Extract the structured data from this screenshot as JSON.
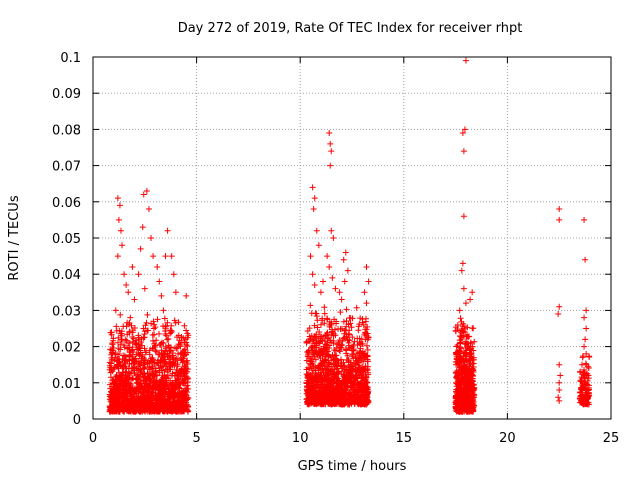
{
  "chart_data": {
    "type": "scatter",
    "title": "Day 272 of 2019, Rate Of TEC Index for receiver rhpt",
    "xlabel": "GPS time / hours",
    "ylabel": "ROTI / TECUs",
    "xlim": [
      0,
      25
    ],
    "ylim": [
      0,
      0.1
    ],
    "xticks": [
      "0",
      "5",
      "10",
      "15",
      "20",
      "25"
    ],
    "yticks": [
      "0",
      "0.01",
      "0.02",
      "0.03",
      "0.04",
      "0.05",
      "0.06",
      "0.07",
      "0.08",
      "0.09",
      "0.1"
    ],
    "grid": true,
    "marker": "plus",
    "color": "#ff0000",
    "series": [
      {
        "name": "ROTI",
        "points": [
          [
            1.2,
            0.061
          ],
          [
            1.3,
            0.059
          ],
          [
            1.25,
            0.055
          ],
          [
            1.35,
            0.052
          ],
          [
            1.4,
            0.048
          ],
          [
            1.2,
            0.045
          ],
          [
            1.5,
            0.04
          ],
          [
            1.6,
            0.037
          ],
          [
            1.7,
            0.035
          ],
          [
            1.1,
            0.03
          ],
          [
            1.8,
            0.028
          ],
          [
            2.0,
            0.033
          ],
          [
            2.2,
            0.04
          ],
          [
            2.3,
            0.047
          ],
          [
            2.4,
            0.053
          ],
          [
            2.45,
            0.062
          ],
          [
            2.6,
            0.063
          ],
          [
            2.7,
            0.058
          ],
          [
            2.8,
            0.05
          ],
          [
            2.9,
            0.045
          ],
          [
            3.1,
            0.042
          ],
          [
            3.2,
            0.038
          ],
          [
            3.3,
            0.034
          ],
          [
            3.5,
            0.045
          ],
          [
            3.6,
            0.052
          ],
          [
            3.8,
            0.045
          ],
          [
            3.9,
            0.04
          ],
          [
            4.0,
            0.035
          ],
          [
            4.5,
            0.034
          ],
          [
            3.4,
            0.03
          ],
          [
            2.5,
            0.036
          ],
          [
            1.9,
            0.042
          ],
          [
            10.6,
            0.064
          ],
          [
            10.7,
            0.061
          ],
          [
            10.65,
            0.058
          ],
          [
            10.8,
            0.052
          ],
          [
            10.9,
            0.048
          ],
          [
            10.5,
            0.045
          ],
          [
            10.6,
            0.04
          ],
          [
            10.7,
            0.037
          ],
          [
            11.0,
            0.035
          ],
          [
            11.1,
            0.038
          ],
          [
            11.4,
            0.079
          ],
          [
            11.45,
            0.076
          ],
          [
            11.5,
            0.074
          ],
          [
            11.45,
            0.07
          ],
          [
            11.5,
            0.052
          ],
          [
            11.6,
            0.05
          ],
          [
            11.3,
            0.045
          ],
          [
            11.4,
            0.042
          ],
          [
            11.55,
            0.039
          ],
          [
            11.7,
            0.036
          ],
          [
            11.9,
            0.035
          ],
          [
            12.0,
            0.033
          ],
          [
            12.1,
            0.044
          ],
          [
            12.2,
            0.046
          ],
          [
            12.3,
            0.041
          ],
          [
            12.15,
            0.038
          ],
          [
            13.2,
            0.042
          ],
          [
            13.3,
            0.038
          ],
          [
            13.1,
            0.035
          ],
          [
            13.2,
            0.032
          ],
          [
            17.8,
            0.041
          ],
          [
            17.85,
            0.043
          ],
          [
            17.9,
            0.056
          ],
          [
            17.9,
            0.074
          ],
          [
            17.85,
            0.079
          ],
          [
            17.95,
            0.08
          ],
          [
            18.0,
            0.099
          ],
          [
            17.9,
            0.036
          ],
          [
            18.0,
            0.032
          ],
          [
            18.2,
            0.033
          ],
          [
            18.3,
            0.035
          ],
          [
            17.7,
            0.03
          ],
          [
            22.5,
            0.058
          ],
          [
            22.5,
            0.055
          ],
          [
            22.5,
            0.031
          ],
          [
            22.45,
            0.029
          ],
          [
            22.5,
            0.015
          ],
          [
            22.55,
            0.012
          ],
          [
            22.5,
            0.01
          ],
          [
            22.5,
            0.008
          ],
          [
            22.45,
            0.006
          ],
          [
            22.5,
            0.005
          ],
          [
            23.7,
            0.055
          ],
          [
            23.75,
            0.044
          ],
          [
            23.8,
            0.03
          ],
          [
            23.7,
            0.028
          ],
          [
            23.8,
            0.025
          ],
          [
            23.75,
            0.022
          ],
          [
            23.7,
            0.02
          ],
          [
            23.8,
            0.018
          ],
          [
            23.6,
            0.015
          ],
          [
            23.85,
            0.012
          ],
          [
            23.7,
            0.01
          ],
          [
            23.8,
            0.008
          ],
          [
            23.75,
            0.006
          ],
          [
            23.7,
            0.005
          ]
        ],
        "clusters": [
          {
            "x_range": [
              0.8,
              4.6
            ],
            "y_range": [
              0.002,
              0.03
            ],
            "count": 1600
          },
          {
            "x_range": [
              10.3,
              13.3
            ],
            "y_range": [
              0.004,
              0.032
            ],
            "count": 1300
          },
          {
            "x_range": [
              17.5,
              18.4
            ],
            "y_range": [
              0.002,
              0.03
            ],
            "count": 650
          },
          {
            "x_range": [
              23.5,
              23.95
            ],
            "y_range": [
              0.004,
              0.02
            ],
            "count": 120
          }
        ]
      }
    ]
  }
}
